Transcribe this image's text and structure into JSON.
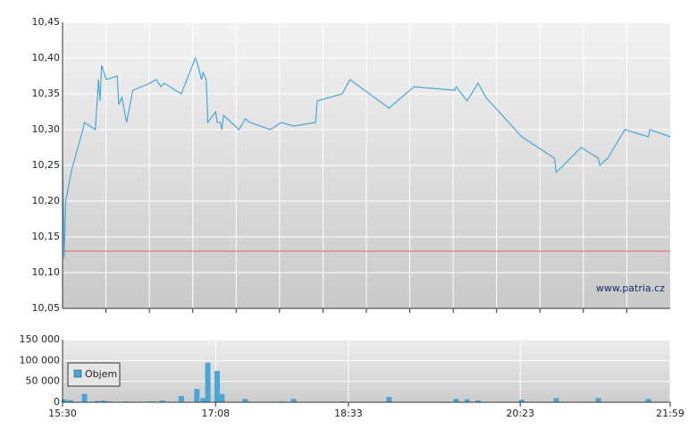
{
  "chart_data": [
    {
      "type": "line",
      "watermark": "www.patria.cz",
      "xlim": [
        "15:30",
        "21:59"
      ],
      "ylim": [
        10.05,
        10.45
      ],
      "yticks": [
        {
          "value": 10.05,
          "label": "10,05"
        },
        {
          "value": 10.1,
          "label": "10,10"
        },
        {
          "value": 10.15,
          "label": "10,15"
        },
        {
          "value": 10.2,
          "label": "10,20"
        },
        {
          "value": 10.25,
          "label": "10,25"
        },
        {
          "value": 10.3,
          "label": "10,30"
        },
        {
          "value": 10.35,
          "label": "10,35"
        },
        {
          "value": 10.4,
          "label": "10,40"
        },
        {
          "value": 10.45,
          "label": "10,45"
        }
      ],
      "reference_line": 10.13,
      "reference_color": "#e06060",
      "grid": true,
      "x": [
        "15:30",
        "15:31",
        "15:32",
        "15:36",
        "15:43",
        "15:44",
        "15:51",
        "15:53",
        "15:54",
        "15:55",
        "15:58",
        "16:05",
        "16:06",
        "16:08",
        "16:11",
        "16:15",
        "16:26",
        "16:30",
        "16:33",
        "16:35",
        "16:46",
        "16:55",
        "16:56",
        "16:59",
        "17:00",
        "17:02",
        "17:03",
        "17:08",
        "17:09",
        "17:11",
        "17:12",
        "17:13",
        "17:18",
        "17:23",
        "17:27",
        "17:30",
        "17:43",
        "17:50",
        "17:58",
        "18:12",
        "18:13",
        "18:29",
        "18:34",
        "18:59",
        "19:15",
        "19:41",
        "19:42",
        "19:49",
        "19:56",
        "20:01",
        "20:24",
        "20:45",
        "20:46",
        "21:02",
        "21:13",
        "21:14",
        "21:19",
        "21:30",
        "21:45",
        "21:46",
        "21:59"
      ],
      "series": [
        {
          "color": "#4ba6d6",
          "values": [
            10.25,
            10.12,
            10.2,
            10.245,
            10.3,
            10.31,
            10.3,
            10.37,
            10.34,
            10.39,
            10.37,
            10.375,
            10.335,
            10.345,
            10.31,
            10.355,
            10.365,
            10.37,
            10.36,
            10.365,
            10.35,
            10.4,
            10.395,
            10.37,
            10.38,
            10.37,
            10.31,
            10.325,
            10.31,
            10.31,
            10.3,
            10.32,
            10.31,
            10.3,
            10.315,
            10.31,
            10.3,
            10.31,
            10.305,
            10.31,
            10.34,
            10.35,
            10.37,
            10.33,
            10.36,
            10.355,
            10.36,
            10.34,
            10.365,
            10.345,
            10.29,
            10.26,
            10.24,
            10.275,
            10.26,
            10.25,
            10.26,
            10.3,
            10.29,
            10.3,
            10.29
          ]
        }
      ]
    },
    {
      "type": "bar",
      "xlim": [
        "15:30",
        "21:59"
      ],
      "xticks": [
        "15:30",
        "17:08",
        "18:33",
        "20:23",
        "21:59"
      ],
      "ylim": [
        0,
        150000
      ],
      "yticks": [
        0,
        {
          "value": 50000,
          "label": "50 000"
        },
        {
          "value": 100000,
          "label": "100 000"
        },
        {
          "value": 150000,
          "label": "150 000"
        }
      ],
      "grid": true,
      "x": [
        "15:31",
        "15:35",
        "15:44",
        "15:52",
        "15:56",
        "15:59",
        "16:10",
        "16:27",
        "16:34",
        "16:46",
        "16:56",
        "17:00",
        "17:03",
        "17:09",
        "17:12",
        "17:27",
        "17:50",
        "17:58",
        "18:29",
        "18:59",
        "19:42",
        "19:49",
        "19:56",
        "20:24",
        "20:46",
        "21:13",
        "21:45"
      ],
      "series": [
        {
          "name": "Objem",
          "color": "#4ba6d6",
          "values": [
            7000,
            5000,
            20000,
            3000,
            4000,
            2000,
            2000,
            2000,
            4000,
            15000,
            32000,
            10000,
            95000,
            75000,
            20000,
            8000,
            2000,
            8000,
            2000,
            13000,
            8000,
            7000,
            4000,
            6000,
            10000,
            10000,
            8000
          ]
        }
      ]
    }
  ]
}
